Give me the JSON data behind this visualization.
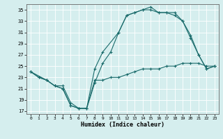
{
  "xlabel": "Humidex (Indice chaleur)",
  "xlim": [
    -0.5,
    23.5
  ],
  "ylim": [
    16.5,
    36
  ],
  "yticks": [
    17,
    19,
    21,
    23,
    25,
    27,
    29,
    31,
    33,
    35
  ],
  "xticks": [
    0,
    1,
    2,
    3,
    4,
    5,
    6,
    7,
    8,
    9,
    10,
    11,
    12,
    13,
    14,
    15,
    16,
    17,
    18,
    19,
    20,
    21,
    22,
    23
  ],
  "bg_color": "#d5eeee",
  "grid_color": "#ffffff",
  "line_color": "#1a6b6b",
  "line1_x": [
    0,
    1,
    2,
    3,
    4,
    5,
    6,
    7,
    8,
    9,
    10,
    11,
    12,
    13,
    14,
    15,
    16,
    17,
    18,
    19,
    20,
    21,
    22,
    23
  ],
  "line1_y": [
    24,
    23,
    22.5,
    21.5,
    21.5,
    18.5,
    17.5,
    17.5,
    22.5,
    22.5,
    23,
    23,
    23.5,
    24,
    24.5,
    24.5,
    24.5,
    25,
    25,
    25.5,
    25.5,
    25.5,
    25,
    25
  ],
  "line2_x": [
    0,
    2,
    3,
    4,
    5,
    6,
    7,
    8,
    9,
    11,
    12,
    13,
    14,
    15,
    16,
    17,
    18,
    19,
    20,
    21,
    22,
    23
  ],
  "line2_y": [
    24,
    22.5,
    21.5,
    21,
    18,
    17.5,
    17.5,
    24.5,
    27.5,
    31,
    34,
    34.5,
    35,
    35.5,
    34.5,
    34.5,
    34.5,
    33,
    30,
    27,
    24.5,
    25
  ],
  "line3_x": [
    0,
    1,
    2,
    3,
    4,
    5,
    6,
    7,
    8,
    9,
    10,
    11,
    12,
    13,
    14,
    15,
    16,
    17,
    18,
    19,
    20,
    21,
    22,
    23
  ],
  "line3_y": [
    24,
    23,
    22.5,
    21.5,
    21,
    18,
    17.5,
    17.5,
    22,
    25.5,
    27.5,
    31,
    34,
    34.5,
    35,
    35,
    34.5,
    34.5,
    34,
    33,
    30.5,
    27,
    24.5,
    25
  ]
}
